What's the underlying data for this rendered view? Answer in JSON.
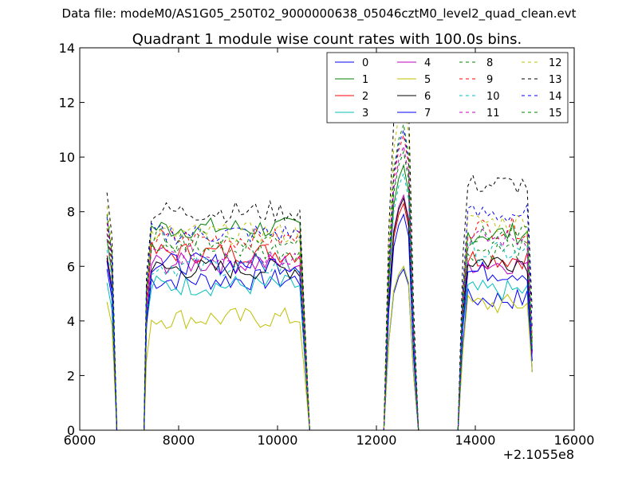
{
  "suptitle": "Data file: modeM0/AS1G05_250T02_9000000638_05046cztM0_level2_quad_clean.evt",
  "chart_data": {
    "type": "line",
    "title": "Quadrant 1 module wise count rates with 100.0s bins.",
    "xlabel": "",
    "ylabel": "",
    "x_offset_label": "+2.1055e8",
    "xlim": [
      6000,
      16000
    ],
    "ylim": [
      0,
      14
    ],
    "xticks": [
      6000,
      8000,
      10000,
      12000,
      14000,
      16000
    ],
    "xtick_labels": [
      "6000",
      "8000",
      "10000",
      "12000",
      "14000",
      "16000"
    ],
    "yticks": [
      0,
      2,
      4,
      6,
      8,
      10,
      12,
      14
    ],
    "ytick_labels": [
      "0",
      "2",
      "4",
      "6",
      "8",
      "10",
      "12",
      "14"
    ],
    "grid": false,
    "legend_position": "upper-right",
    "segments_note": "count-rate plateaus at roughly x=6550-6650, 7350-10500, 12250-12750, 13750-15150 with zero rate between",
    "series": [
      {
        "name": "0",
        "color": "#0000ff",
        "style": "solid",
        "levels": [
          5.9,
          5.5,
          5.9,
          4.8
        ]
      },
      {
        "name": "1",
        "color": "#008000",
        "style": "solid",
        "levels": [
          7.0,
          7.4,
          9.7,
          7.2
        ]
      },
      {
        "name": "2",
        "color": "#ff0000",
        "style": "solid",
        "levels": [
          6.4,
          6.5,
          8.3,
          6.3
        ]
      },
      {
        "name": "3",
        "color": "#00bfbf",
        "style": "solid",
        "levels": [
          5.4,
          5.3,
          6.0,
          5.1
        ]
      },
      {
        "name": "4",
        "color": "#bf00bf",
        "style": "solid",
        "levels": [
          6.2,
          6.1,
          8.6,
          6.1
        ]
      },
      {
        "name": "5",
        "color": "#bfbf00",
        "style": "solid",
        "levels": [
          4.7,
          4.1,
          6.0,
          4.6
        ]
      },
      {
        "name": "6",
        "color": "#000000",
        "style": "solid",
        "levels": [
          6.3,
          5.9,
          8.5,
          6.2
        ]
      },
      {
        "name": "7",
        "color": "#0000ff",
        "style": "solid",
        "levels": [
          6.2,
          6.1,
          7.9,
          5.8
        ]
      },
      {
        "name": "8",
        "color": "#008000",
        "style": "dashed",
        "levels": [
          7.4,
          6.6,
          10.2,
          6.6
        ]
      },
      {
        "name": "9",
        "color": "#ff0000",
        "style": "dashed",
        "levels": [
          7.6,
          7.0,
          10.8,
          7.4
        ]
      },
      {
        "name": "10",
        "color": "#00bfbf",
        "style": "dashed",
        "levels": [
          6.6,
          6.0,
          9.4,
          6.5
        ]
      },
      {
        "name": "11",
        "color": "#bf00bf",
        "style": "dashed",
        "levels": [
          7.2,
          6.4,
          10.4,
          7.0
        ]
      },
      {
        "name": "12",
        "color": "#bfbf00",
        "style": "dashed",
        "levels": [
          8.2,
          7.2,
          12.1,
          7.6
        ]
      },
      {
        "name": "13",
        "color": "#000000",
        "style": "dashed",
        "levels": [
          8.7,
          8.0,
          13.3,
          9.0
        ]
      },
      {
        "name": "14",
        "color": "#0000ff",
        "style": "dashed",
        "levels": [
          7.8,
          7.2,
          11.0,
          7.9
        ]
      },
      {
        "name": "15",
        "color": "#008000",
        "style": "dashed",
        "levels": [
          7.9,
          7.0,
          11.2,
          7.1
        ]
      }
    ]
  }
}
